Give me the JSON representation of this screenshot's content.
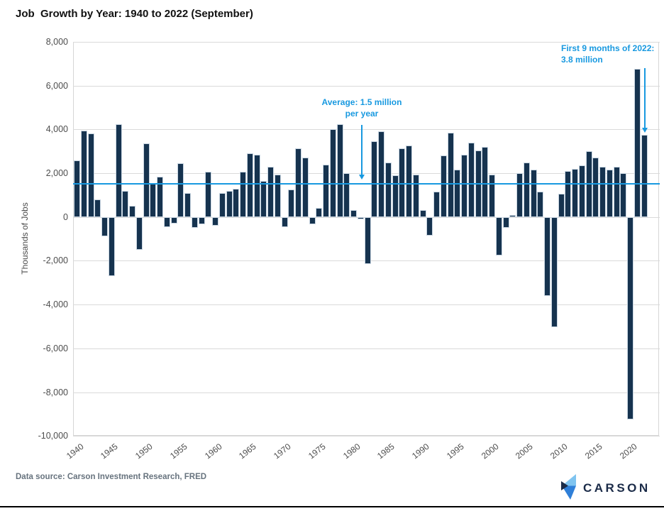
{
  "title": "Job  Growth by Year: 1940 to 2022 (September)",
  "y_axis_title": "Thousands of Jobs",
  "annotations": {
    "average_line1": "Average: 1.5 million",
    "average_line2": "per year",
    "recent_line1": "First 9 months of 2022:",
    "recent_line2": "3.8 million"
  },
  "source_note": "Data source: Carson Investment Research, FRED",
  "logo": {
    "text": "CARSON"
  },
  "colors": {
    "bar": "#16334f",
    "accent_blue": "#1899e0",
    "logo_navy": "#1b2b48",
    "logo_light_blue": "#7fc4f0",
    "logo_mid_blue": "#2f7fd8",
    "gridline": "#dadada",
    "axis_text": "#4d4d4d"
  },
  "chart_data": {
    "type": "bar",
    "title": "Job Growth by Year: 1940 to 2022 (September)",
    "xlabel": "",
    "ylabel": "Thousands of Jobs",
    "ylim": [
      -10000,
      8000
    ],
    "grid": true,
    "average_value": 1500,
    "yticks": [
      8000,
      6000,
      4000,
      2000,
      0,
      -2000,
      -4000,
      -6000,
      -8000,
      -10000
    ],
    "xticks": [
      1940,
      1945,
      1950,
      1955,
      1960,
      1965,
      1970,
      1975,
      1980,
      1985,
      1990,
      1995,
      2000,
      2005,
      2010,
      2015,
      2020
    ],
    "series_name": "Annual job growth (thousands)",
    "data": [
      [
        1940,
        2600
      ],
      [
        1941,
        3950
      ],
      [
        1942,
        3800
      ],
      [
        1943,
        800
      ],
      [
        1944,
        -900
      ],
      [
        1945,
        -2700
      ],
      [
        1946,
        4250
      ],
      [
        1947,
        1200
      ],
      [
        1948,
        500
      ],
      [
        1949,
        -1500
      ],
      [
        1950,
        3350
      ],
      [
        1951,
        1500
      ],
      [
        1952,
        1850
      ],
      [
        1953,
        -450
      ],
      [
        1954,
        -300
      ],
      [
        1955,
        2450
      ],
      [
        1956,
        1100
      ],
      [
        1957,
        -500
      ],
      [
        1958,
        -350
      ],
      [
        1959,
        2050
      ],
      [
        1960,
        -400
      ],
      [
        1961,
        1100
      ],
      [
        1962,
        1200
      ],
      [
        1963,
        1300
      ],
      [
        1964,
        2050
      ],
      [
        1965,
        2900
      ],
      [
        1966,
        2850
      ],
      [
        1967,
        1650
      ],
      [
        1968,
        2300
      ],
      [
        1969,
        1950
      ],
      [
        1970,
        -450
      ],
      [
        1971,
        1250
      ],
      [
        1972,
        3150
      ],
      [
        1973,
        2700
      ],
      [
        1974,
        -350
      ],
      [
        1975,
        400
      ],
      [
        1976,
        2400
      ],
      [
        1977,
        4000
      ],
      [
        1978,
        4250
      ],
      [
        1979,
        2000
      ],
      [
        1980,
        300
      ],
      [
        1981,
        -100
      ],
      [
        1982,
        -2150
      ],
      [
        1983,
        3450
      ],
      [
        1984,
        3900
      ],
      [
        1985,
        2500
      ],
      [
        1986,
        1900
      ],
      [
        1987,
        3150
      ],
      [
        1988,
        3250
      ],
      [
        1989,
        1950
      ],
      [
        1990,
        300
      ],
      [
        1991,
        -850
      ],
      [
        1992,
        1150
      ],
      [
        1993,
        2800
      ],
      [
        1994,
        3850
      ],
      [
        1995,
        2150
      ],
      [
        1996,
        2850
      ],
      [
        1997,
        3400
      ],
      [
        1998,
        3050
      ],
      [
        1999,
        3200
      ],
      [
        2000,
        1950
      ],
      [
        2001,
        -1750
      ],
      [
        2002,
        -500
      ],
      [
        2003,
        100
      ],
      [
        2004,
        2000
      ],
      [
        2005,
        2500
      ],
      [
        2006,
        2150
      ],
      [
        2007,
        1150
      ],
      [
        2008,
        -3600
      ],
      [
        2009,
        -5050
      ],
      [
        2010,
        1050
      ],
      [
        2011,
        2100
      ],
      [
        2012,
        2200
      ],
      [
        2013,
        2350
      ],
      [
        2014,
        3000
      ],
      [
        2015,
        2700
      ],
      [
        2016,
        2300
      ],
      [
        2017,
        2150
      ],
      [
        2018,
        2300
      ],
      [
        2019,
        2000
      ],
      [
        2020,
        -9250
      ],
      [
        2021,
        6750
      ],
      [
        2022,
        3750
      ]
    ]
  }
}
